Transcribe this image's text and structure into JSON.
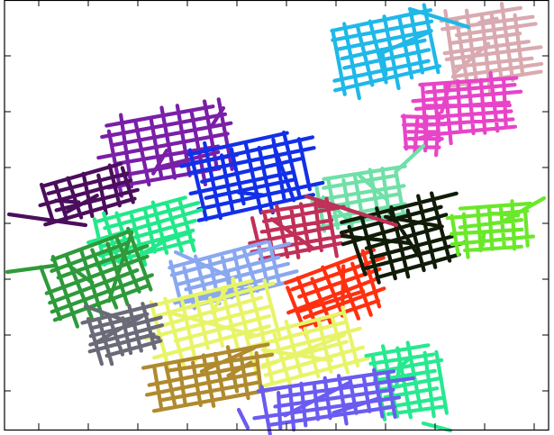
{
  "figure": {
    "clusters": [
      {
        "id": "cyan",
        "color": "#1fb8e8"
      },
      {
        "id": "pink-beige",
        "color": "#d9aab0"
      },
      {
        "id": "magenta",
        "color": "#e844c8"
      },
      {
        "id": "purple",
        "color": "#7a1fa8"
      },
      {
        "id": "dark-purple",
        "color": "#4b0e5c"
      },
      {
        "id": "blue",
        "color": "#1230e8"
      },
      {
        "id": "mint",
        "color": "#70e0a8"
      },
      {
        "id": "spring-green",
        "color": "#22e88a"
      },
      {
        "id": "crimson",
        "color": "#c03058"
      },
      {
        "id": "black",
        "color": "#101c08"
      },
      {
        "id": "lime",
        "color": "#6ae82a"
      },
      {
        "id": "green",
        "color": "#2e9a3a"
      },
      {
        "id": "light-blue",
        "color": "#8aa8f0"
      },
      {
        "id": "red-orange",
        "color": "#ff3010"
      },
      {
        "id": "yellow",
        "color": "#e8f468"
      },
      {
        "id": "gray",
        "color": "#6a6a78"
      },
      {
        "id": "brown",
        "color": "#b08a2e"
      },
      {
        "id": "violet",
        "color": "#6a5cf0"
      },
      {
        "id": "sea-green",
        "color": "#28e890"
      }
    ]
  }
}
